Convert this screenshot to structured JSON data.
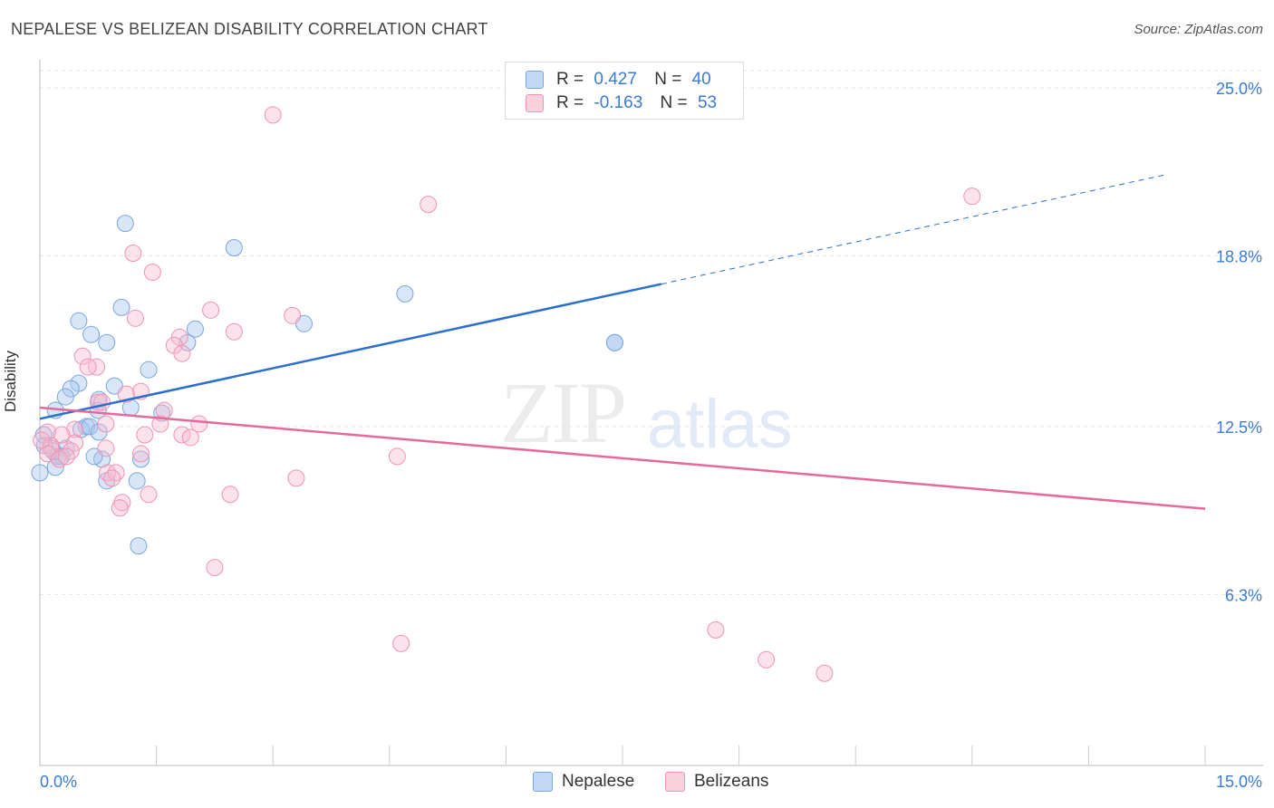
{
  "header": {
    "title": "NEPALESE VS BELIZEAN DISABILITY CORRELATION CHART",
    "source": "Source: ZipAtlas.com"
  },
  "watermark": {
    "zip": "ZIP",
    "atlas": "atlas"
  },
  "legend_top": {
    "nepalese": {
      "r_label": "R =",
      "r_value": "0.427",
      "n_label": "N =",
      "n_value": "40"
    },
    "belizeans": {
      "r_label": "R =",
      "r_value": "-0.163",
      "n_label": "N =",
      "n_value": "53"
    }
  },
  "colors": {
    "nepalese_fill": "#a9c8f0",
    "nepalese_stroke": "#7aa6de",
    "nepalese_line": "#2a6fcf",
    "belizeans_fill": "#f7b8cc",
    "belizeans_stroke": "#ef93b2",
    "belizeans_line": "#e5699a",
    "tick_label": "#3a7bd5",
    "grid": "#e4e4e4"
  },
  "chart_data": {
    "type": "scatter",
    "title": "NEPALESE VS BELIZEAN DISABILITY CORRELATION CHART",
    "xlabel": "",
    "ylabel": "Disability",
    "xlim": [
      0,
      15
    ],
    "ylim": [
      0,
      25.0
    ],
    "x_tick_labels": [
      "0.0%",
      "15.0%"
    ],
    "y_ticks": [
      6.3,
      12.5,
      18.8,
      25.0
    ],
    "y_tick_labels": [
      "6.3%",
      "12.5%",
      "18.8%",
      "25.0%"
    ],
    "grid": true,
    "legend_placement": "bottom-center",
    "series": [
      {
        "name": "Nepalese",
        "r": 0.427,
        "n": 40,
        "trend": {
          "x_start": 0,
          "y_start": 12.79,
          "x_solid_end": 8.0,
          "x_end": 14.5,
          "slope": 0.6214
        },
        "points": [
          [
            1.1,
            20.0
          ],
          [
            2.5,
            19.1
          ],
          [
            4.7,
            17.4
          ],
          [
            3.4,
            16.3
          ],
          [
            1.05,
            16.9
          ],
          [
            0.5,
            16.4
          ],
          [
            0.66,
            15.9
          ],
          [
            0.86,
            15.6
          ],
          [
            2.0,
            16.1
          ],
          [
            1.9,
            15.6
          ],
          [
            7.4,
            15.6
          ],
          [
            7.4,
            15.6
          ],
          [
            1.4,
            14.6
          ],
          [
            0.5,
            14.1
          ],
          [
            0.4,
            13.9
          ],
          [
            0.96,
            14.0
          ],
          [
            0.33,
            13.6
          ],
          [
            0.76,
            13.5
          ],
          [
            0.2,
            13.1
          ],
          [
            0.75,
            13.1
          ],
          [
            1.17,
            13.2
          ],
          [
            1.57,
            13.0
          ],
          [
            0.6,
            12.5
          ],
          [
            0.53,
            12.4
          ],
          [
            0.64,
            12.5
          ],
          [
            0.76,
            12.3
          ],
          [
            0.05,
            12.2
          ],
          [
            0.34,
            11.7
          ],
          [
            0.17,
            11.6
          ],
          [
            0.23,
            11.4
          ],
          [
            0.28,
            11.4
          ],
          [
            0.8,
            11.3
          ],
          [
            1.3,
            11.3
          ],
          [
            0.2,
            11.0
          ],
          [
            0.0,
            10.8
          ],
          [
            0.86,
            10.5
          ],
          [
            1.25,
            10.5
          ],
          [
            1.27,
            8.1
          ],
          [
            0.06,
            11.8
          ],
          [
            0.7,
            11.4
          ]
        ]
      },
      {
        "name": "Belizeans",
        "r": -0.163,
        "n": 53,
        "trend": {
          "x_start": 0,
          "y_start": 13.2,
          "x_end": 15.0,
          "slope": -0.2487
        },
        "points": [
          [
            3.0,
            24.0
          ],
          [
            5.0,
            20.7
          ],
          [
            12.0,
            21.0
          ],
          [
            1.2,
            18.9
          ],
          [
            1.45,
            18.2
          ],
          [
            2.2,
            16.8
          ],
          [
            3.25,
            16.6
          ],
          [
            1.23,
            16.5
          ],
          [
            2.5,
            16.0
          ],
          [
            1.8,
            15.8
          ],
          [
            1.73,
            15.5
          ],
          [
            1.83,
            15.2
          ],
          [
            0.55,
            15.1
          ],
          [
            0.73,
            14.7
          ],
          [
            0.62,
            14.7
          ],
          [
            1.3,
            13.8
          ],
          [
            1.11,
            13.7
          ],
          [
            0.75,
            13.4
          ],
          [
            0.8,
            13.4
          ],
          [
            1.6,
            13.1
          ],
          [
            0.85,
            12.6
          ],
          [
            1.55,
            12.6
          ],
          [
            2.05,
            12.6
          ],
          [
            0.45,
            12.4
          ],
          [
            0.1,
            12.3
          ],
          [
            0.28,
            12.2
          ],
          [
            1.35,
            12.2
          ],
          [
            1.83,
            12.2
          ],
          [
            1.94,
            12.1
          ],
          [
            0.45,
            11.9
          ],
          [
            0.14,
            11.8
          ],
          [
            0.14,
            11.7
          ],
          [
            0.85,
            11.7
          ],
          [
            1.3,
            11.5
          ],
          [
            0.1,
            11.5
          ],
          [
            0.4,
            11.6
          ],
          [
            4.6,
            11.4
          ],
          [
            0.25,
            11.3
          ],
          [
            0.34,
            11.4
          ],
          [
            0.87,
            10.8
          ],
          [
            0.98,
            10.8
          ],
          [
            0.93,
            10.6
          ],
          [
            3.3,
            10.6
          ],
          [
            1.4,
            10.0
          ],
          [
            2.45,
            10.0
          ],
          [
            1.06,
            9.7
          ],
          [
            1.03,
            9.5
          ],
          [
            2.25,
            7.3
          ],
          [
            4.65,
            4.5
          ],
          [
            8.7,
            5.0
          ],
          [
            9.35,
            3.9
          ],
          [
            10.1,
            3.4
          ],
          [
            0.02,
            12.0
          ]
        ]
      }
    ]
  }
}
